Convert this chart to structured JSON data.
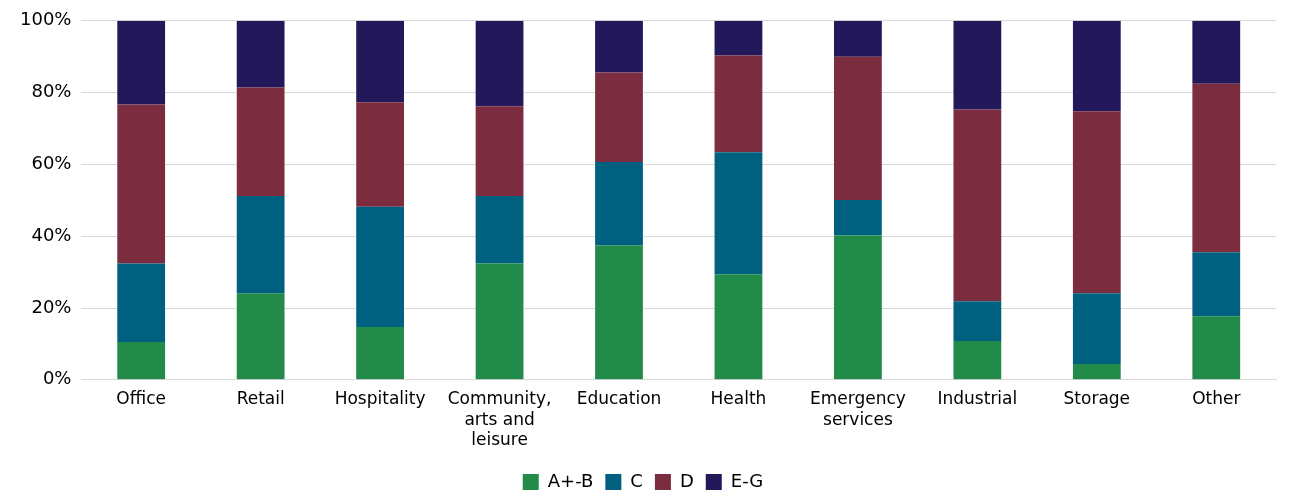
{
  "chart_data": {
    "type": "bar",
    "stacked": true,
    "categories": [
      "Office",
      "Retail",
      "Hospitality",
      "Community, arts and leisure",
      "Education",
      "Health",
      "Emergency services",
      "Industrial",
      "Storage",
      "Other"
    ],
    "series": [
      {
        "name": "A+-B",
        "color": "#228b4a",
        "values": [
          10.5,
          24.1,
          14.7,
          32.4,
          37.4,
          29.4,
          40.2,
          10.8,
          4.4,
          17.7
        ]
      },
      {
        "name": "C",
        "color": "#00607f",
        "values": [
          21.9,
          27.1,
          33.5,
          18.8,
          23.3,
          34.0,
          9.9,
          11.1,
          19.7,
          17.8
        ]
      },
      {
        "name": "D",
        "color": "#7b2c3e",
        "values": [
          44.3,
          30.2,
          29.1,
          25.0,
          24.9,
          26.9,
          39.9,
          53.4,
          50.7,
          47.0
        ]
      },
      {
        "name": "E-G",
        "color": "#22185a",
        "values": [
          23.3,
          18.6,
          22.7,
          23.8,
          14.4,
          9.7,
          10.0,
          24.7,
          25.2,
          17.5
        ]
      }
    ],
    "ylim": [
      0,
      100
    ],
    "yticks": [
      {
        "value": 0,
        "label": "0%"
      },
      {
        "value": 20,
        "label": "20%"
      },
      {
        "value": 40,
        "label": "40%"
      },
      {
        "value": 60,
        "label": "60%"
      },
      {
        "value": 80,
        "label": "80%"
      },
      {
        "value": 100,
        "label": "100%"
      }
    ],
    "grid": "y",
    "legend": "bottom"
  }
}
